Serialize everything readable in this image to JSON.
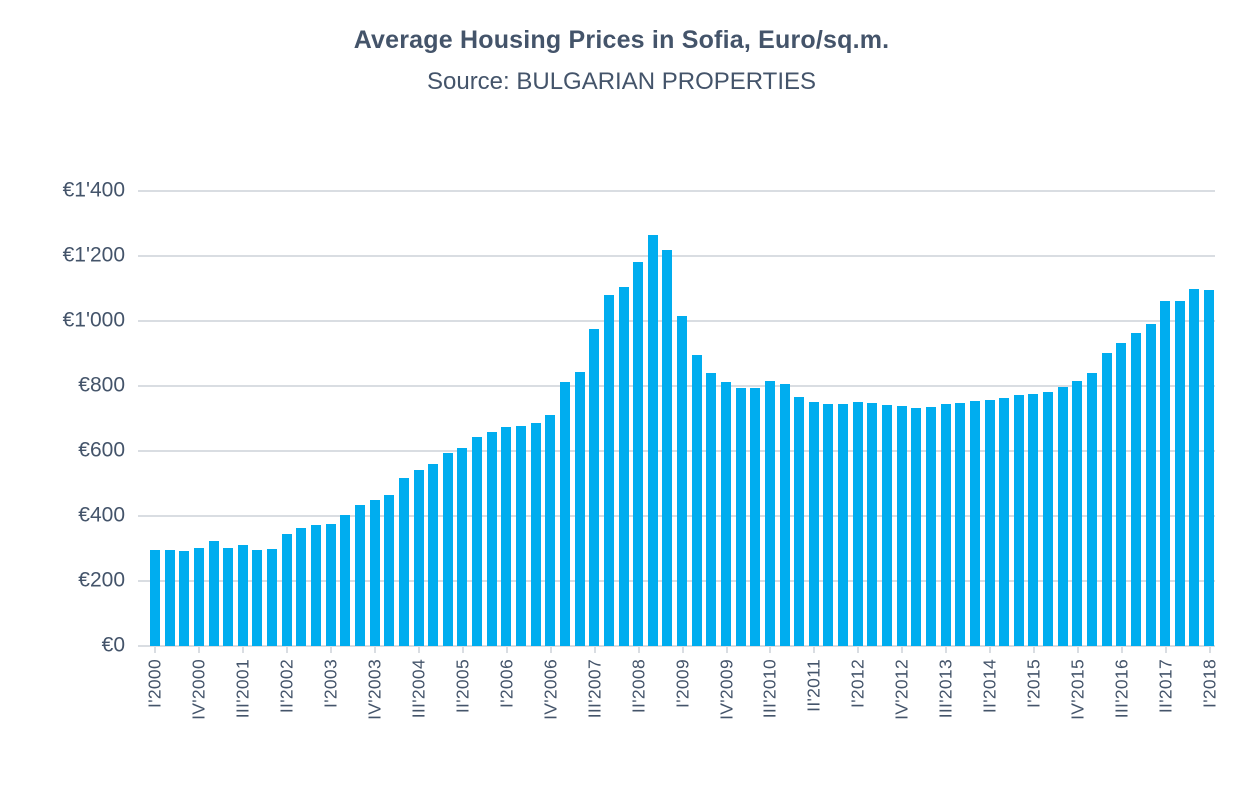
{
  "title": "Average Housing Prices in Sofia, Euro/sq.m.",
  "subtitle": "Source: BULGARIAN PROPERTIES",
  "colors": {
    "bar": "#00ADEF",
    "text": "#44546A",
    "grid": "#D9DDE2",
    "background": "#FFFFFF"
  },
  "chart_data": {
    "type": "bar",
    "title": "Average Housing Prices in Sofia, Euro/sq.m.",
    "subtitle": "Source: BULGARIAN PROPERTIES",
    "unit": "EUR per sq.m.",
    "categories": [
      "I'2000",
      "II'2000",
      "III'2000",
      "IV'2000",
      "I'2001",
      "II'2001",
      "III'2001",
      "IV'2001",
      "I'2002",
      "II'2002",
      "III'2002",
      "IV'2002",
      "I'2003",
      "II'2003",
      "III'2003",
      "IV'2003",
      "I'2004",
      "II'2004",
      "III'2004",
      "IV'2004",
      "I'2005",
      "II'2005",
      "III'2005",
      "IV'2005",
      "I'2006",
      "II'2006",
      "III'2006",
      "IV'2006",
      "I'2007",
      "II'2007",
      "III'2007",
      "IV'2007",
      "I'2008",
      "II'2008",
      "III'2008",
      "IV'2008",
      "I'2009",
      "II'2009",
      "III'2009",
      "IV'2009",
      "I'2010",
      "II'2010",
      "III'2010",
      "IV'2010",
      "I'2011",
      "II'2011",
      "III'2011",
      "IV'2011",
      "I'2012",
      "II'2012",
      "III'2012",
      "IV'2012",
      "I'2013",
      "II'2013",
      "III'2013",
      "IV'2013",
      "I'2014",
      "II'2014",
      "III'2014",
      "IV'2014",
      "I'2015",
      "II'2015",
      "III'2015",
      "IV'2015",
      "I'2016",
      "II'2016",
      "III'2016",
      "IV'2016",
      "I'2017",
      "II'2017",
      "III'2017",
      "IV'2017",
      "I'2018"
    ],
    "values": [
      296,
      296,
      293,
      301,
      324,
      301,
      310,
      297,
      300,
      345,
      363,
      372,
      375,
      404,
      435,
      450,
      464,
      516,
      543,
      560,
      594,
      609,
      643,
      659,
      674,
      677,
      686,
      711,
      813,
      844,
      975,
      1080,
      1105,
      1183,
      1265,
      1218,
      1015,
      897,
      839,
      813,
      795,
      794,
      817,
      805,
      766,
      752,
      745,
      746,
      751,
      747,
      741,
      738,
      731,
      736,
      744,
      749,
      753,
      758,
      764,
      771,
      776,
      783,
      797,
      816,
      841,
      903,
      933,
      964,
      990,
      1061,
      1061,
      1099,
      1095
    ],
    "x_label_every": 3,
    "x_tick_labels": [
      "I'2000",
      "IV'2000",
      "III'2001",
      "II'2002",
      "I'2003",
      "IV'2003",
      "III'2004",
      "II'2005",
      "I'2006",
      "IV'2006",
      "III'2007",
      "II'2008",
      "I'2009",
      "IV'2009",
      "III'2010",
      "II'2011",
      "I'2012",
      "IV'2012",
      "III'2013",
      "II'2014",
      "I'2015",
      "IV'2015",
      "III'2016",
      "II'2017",
      "I'2018"
    ],
    "ylim": [
      0,
      1400
    ],
    "y_tick_step": 200,
    "y_tick_labels": [
      "€0",
      "€200",
      "€400",
      "€600",
      "€800",
      "€1'000",
      "€1'200",
      "€1'400"
    ],
    "grid": true,
    "legend": false
  }
}
